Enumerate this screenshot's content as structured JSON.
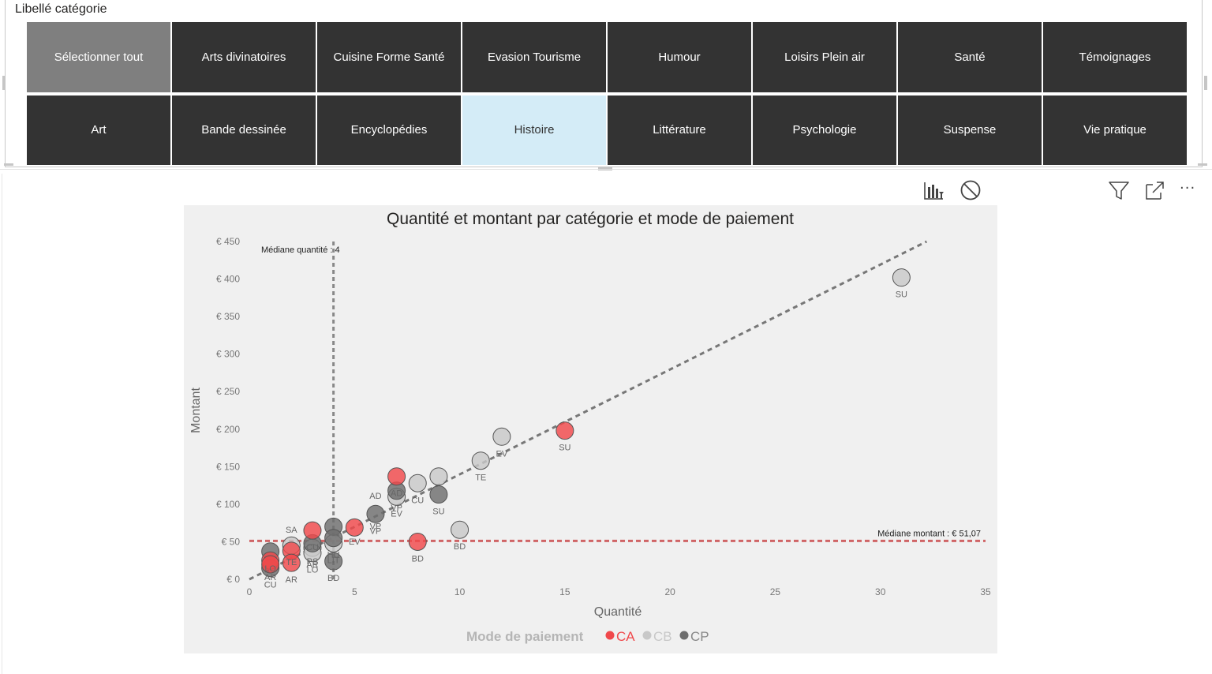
{
  "slicer": {
    "title": "Libellé catégorie",
    "items": [
      {
        "label": "Sélectionner tout",
        "state": "all"
      },
      {
        "label": "Arts divinatoires",
        "state": ""
      },
      {
        "label": "Cuisine Forme Santé",
        "state": ""
      },
      {
        "label": "Evasion Tourisme",
        "state": ""
      },
      {
        "label": "Humour",
        "state": ""
      },
      {
        "label": "Loisirs Plein air",
        "state": ""
      },
      {
        "label": "Santé",
        "state": ""
      },
      {
        "label": "Témoignages",
        "state": ""
      },
      {
        "label": "Art",
        "state": ""
      },
      {
        "label": "Bande dessinée",
        "state": ""
      },
      {
        "label": "Encyclopédies",
        "state": ""
      },
      {
        "label": "Histoire",
        "state": "selected"
      },
      {
        "label": "Littérature",
        "state": ""
      },
      {
        "label": "Psychologie",
        "state": ""
      },
      {
        "label": "Suspense",
        "state": ""
      },
      {
        "label": "Vie pratique",
        "state": ""
      }
    ]
  },
  "toolbar": {
    "icons": [
      "drill-chart-icon",
      "no-filter-icon",
      "filter-icon",
      "focus-mode-icon",
      "more-options-icon"
    ],
    "more_label": "···"
  },
  "chart_data": {
    "type": "scatter",
    "title": "Quantité et montant par catégorie et mode de paiement",
    "xlabel": "Quantité",
    "ylabel": "Montant",
    "xlim": [
      0,
      35
    ],
    "ylim": [
      0,
      450
    ],
    "x_ticks": [
      "0",
      "5",
      "10",
      "15",
      "20",
      "25",
      "30",
      "35"
    ],
    "y_ticks": [
      "€ 0",
      "€ 50",
      "€ 100",
      "€ 150",
      "€ 200",
      "€ 250",
      "€ 300",
      "€ 350",
      "€ 400",
      "€ 450"
    ],
    "legend_title": "Mode de paiement",
    "legend_position": "bottom",
    "series": [
      {
        "name": "CA",
        "color": "#f0484b",
        "points": [
          {
            "x": 1,
            "y": 25,
            "label": "AR"
          },
          {
            "x": 1,
            "y": 20,
            "label": ""
          },
          {
            "x": 2,
            "y": 38,
            "label": ""
          },
          {
            "x": 2,
            "y": 22,
            "label": "AR"
          },
          {
            "x": 3,
            "y": 65,
            "label": "CU"
          },
          {
            "x": 5,
            "y": 69,
            "label": ""
          },
          {
            "x": 7,
            "y": 137,
            "label": "AD"
          },
          {
            "x": 8,
            "y": 50,
            "label": "BD"
          },
          {
            "x": 15,
            "y": 198,
            "label": "SU"
          }
        ]
      },
      {
        "name": "CB",
        "color": "#c8c8c8",
        "points": [
          {
            "x": 2,
            "y": 45,
            "label": "TE"
          },
          {
            "x": 3,
            "y": 42,
            "label": "AR"
          },
          {
            "x": 3,
            "y": 35,
            "label": "LO"
          },
          {
            "x": 4,
            "y": 48,
            "label": "LIT"
          },
          {
            "x": 7,
            "y": 110,
            "label": "EV"
          },
          {
            "x": 8,
            "y": 128,
            "label": "CU"
          },
          {
            "x": 9,
            "y": 137,
            "label": ""
          },
          {
            "x": 10,
            "y": 66,
            "label": "BD"
          },
          {
            "x": 11,
            "y": 158,
            "label": "TE"
          },
          {
            "x": 12,
            "y": 190,
            "label": "EV"
          },
          {
            "x": 31,
            "y": 402,
            "label": "SU"
          }
        ]
      },
      {
        "name": "CP",
        "color": "#6e6e6e",
        "points": [
          {
            "x": 1,
            "y": 37,
            "label": "LO"
          },
          {
            "x": 1,
            "y": 15,
            "label": "CU"
          },
          {
            "x": 3,
            "y": 48,
            "label": ""
          },
          {
            "x": 4,
            "y": 70,
            "label": ""
          },
          {
            "x": 4,
            "y": 55,
            "label": "HU"
          },
          {
            "x": 4,
            "y": 24,
            "label": "BD"
          },
          {
            "x": 6,
            "y": 87,
            "label": "VP"
          },
          {
            "x": 7,
            "y": 118,
            "label": "VP"
          },
          {
            "x": 9,
            "y": 113,
            "label": "SU"
          }
        ]
      }
    ],
    "loose_labels": [
      {
        "x": 2,
        "y": 62,
        "text": "SA"
      },
      {
        "x": 3,
        "y": 20,
        "text": "PS"
      },
      {
        "x": 5,
        "y": 46,
        "text": "EV"
      },
      {
        "x": 6,
        "y": 67,
        "text": "VP"
      },
      {
        "x": 6,
        "y": 107,
        "text": "AD"
      }
    ],
    "trend_line": {
      "from": [
        0,
        0
      ],
      "to": [
        32.2,
        450
      ]
    },
    "reference_lines": [
      {
        "axis": "x",
        "value": 4,
        "label": "Médiane quantité : 4"
      },
      {
        "axis": "y",
        "value": 51.07,
        "label": "Médiane montant : € 51,07"
      }
    ]
  }
}
